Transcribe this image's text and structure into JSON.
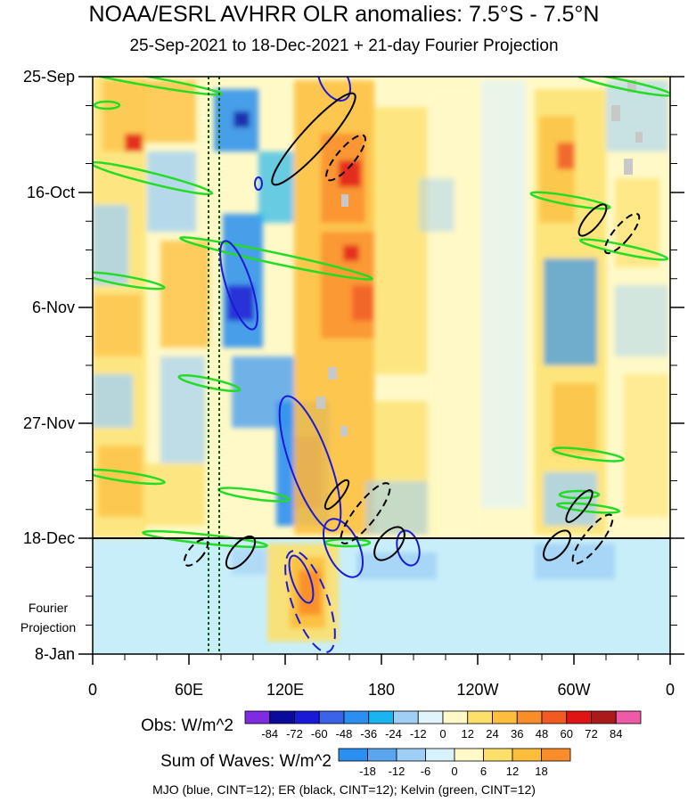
{
  "title": "NOAA/ESRL AVHRR OLR anomalies: 7.5°S - 7.5°N",
  "subtitle": "25-Sep-2021 to 18-Dec-2021 + 21-day Fourier Projection",
  "footnote": "MJO (blue, CINT=12); ER (black, CINT=12); Kelvin (green, CINT=12)",
  "projection_label": [
    "Fourier",
    "Projection"
  ],
  "colors": {
    "mjo": "#1a1ad6",
    "er": "#000000",
    "kelvin": "#22dd22",
    "projection_bg": "#c8eefa"
  },
  "chart_data": {
    "type": "heatmap",
    "xlabel": "",
    "ylabel": "",
    "x_ticks": [
      "0",
      "60E",
      "120E",
      "180",
      "120W",
      "60W",
      "0"
    ],
    "y_ticks": [
      "25-Sep",
      "16-Oct",
      "6-Nov",
      "27-Nov",
      "18-Dec",
      "8-Jan"
    ],
    "observed_end": "18-Dec",
    "obs_colorbar": {
      "label": "Obs: W/m^2",
      "levels": [
        "-84",
        "-72",
        "-60",
        "-48",
        "-36",
        "-24",
        "-12",
        "0",
        "12",
        "24",
        "36",
        "48",
        "60",
        "72",
        "84"
      ],
      "colors": [
        "#7f2ce0",
        "#0a0a9c",
        "#1a1ad6",
        "#3a63e8",
        "#2a8ff0",
        "#1ab4f0",
        "#9fcff5",
        "#dff4fb",
        "#fff9c8",
        "#fde06a",
        "#fdbe3c",
        "#fb8c2a",
        "#f25a22",
        "#e01414",
        "#aa1a1a",
        "#ef5aa8"
      ]
    },
    "waves_colorbar": {
      "label": "Sum of Waves: W/m^2",
      "levels": [
        "-18",
        "-12",
        "-6",
        "0",
        "6",
        "12",
        "18"
      ],
      "colors": [
        "#2a8ff0",
        "#5aa6ee",
        "#9fcff5",
        "#d8f2fb",
        "#fff9c8",
        "#fde06a",
        "#fdbe3c",
        "#fb8c2a"
      ]
    }
  }
}
